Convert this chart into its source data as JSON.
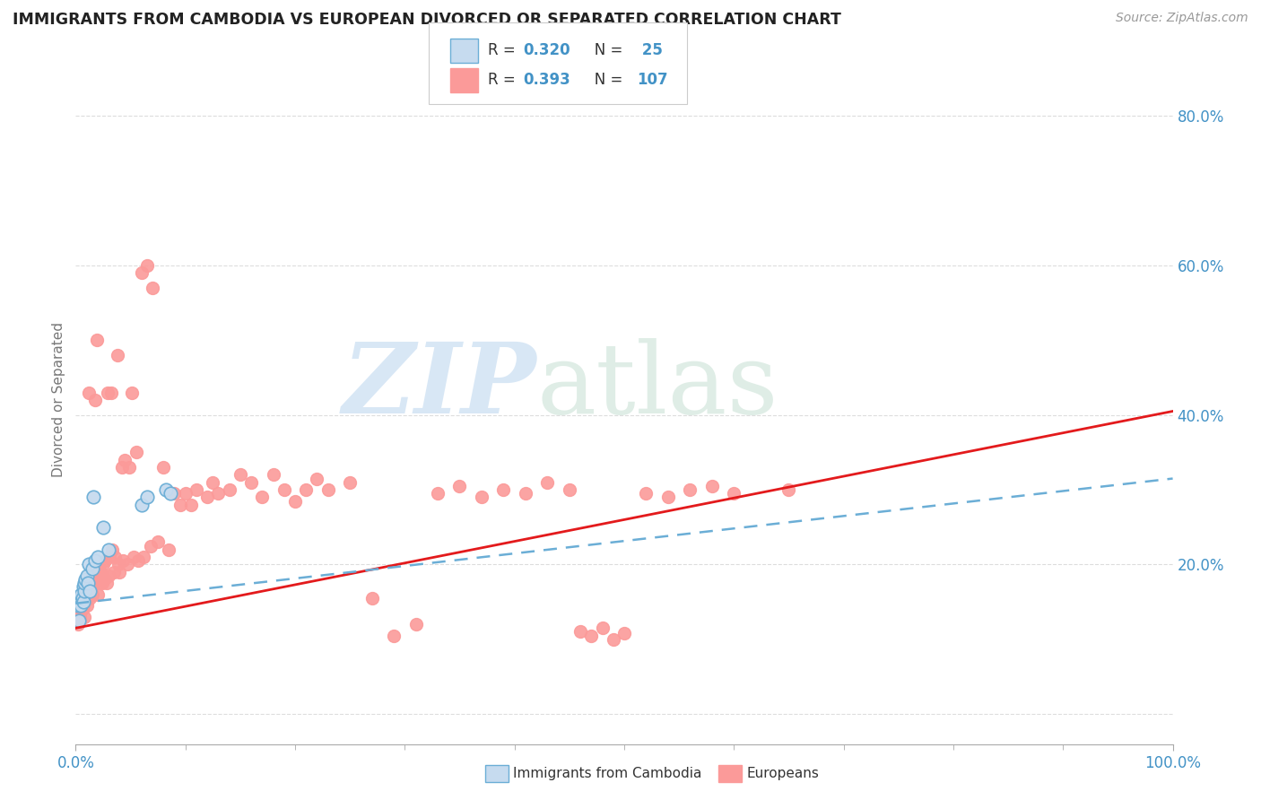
{
  "title": "IMMIGRANTS FROM CAMBODIA VS EUROPEAN DIVORCED OR SEPARATED CORRELATION CHART",
  "source": "Source: ZipAtlas.com",
  "ylabel": "Divorced or Separated",
  "r_cambodia": 0.32,
  "n_cambodia": 25,
  "r_european": 0.393,
  "n_european": 107,
  "color_cambodia_edge": "#6baed6",
  "color_cambodia_fill": "#c6dbef",
  "color_european": "#fb9a99",
  "color_trendline_cambodia": "#6baed6",
  "color_trendline_european": "#e31a1c",
  "color_axis": "#aaaaaa",
  "color_grid": "#dddddd",
  "color_title": "#222222",
  "color_blue_text": "#4292c6",
  "xlim": [
    0.0,
    1.0
  ],
  "ylim": [
    -0.04,
    0.88
  ],
  "trendline_eur_y0": 0.115,
  "trendline_eur_y1": 0.405,
  "trendline_cam_y0": 0.148,
  "trendline_cam_y1": 0.315,
  "cam_x": [
    0.002,
    0.003,
    0.004,
    0.005,
    0.005,
    0.006,
    0.007,
    0.007,
    0.008,
    0.008,
    0.009,
    0.01,
    0.011,
    0.012,
    0.013,
    0.015,
    0.016,
    0.018,
    0.02,
    0.025,
    0.03,
    0.06,
    0.065,
    0.082,
    0.086
  ],
  "cam_y": [
    0.145,
    0.125,
    0.155,
    0.16,
    0.145,
    0.155,
    0.17,
    0.15,
    0.165,
    0.175,
    0.18,
    0.185,
    0.175,
    0.2,
    0.165,
    0.195,
    0.29,
    0.205,
    0.21,
    0.25,
    0.22,
    0.28,
    0.29,
    0.3,
    0.295
  ],
  "eur_x": [
    0.001,
    0.002,
    0.003,
    0.003,
    0.004,
    0.004,
    0.005,
    0.005,
    0.006,
    0.006,
    0.007,
    0.007,
    0.008,
    0.008,
    0.009,
    0.009,
    0.01,
    0.01,
    0.011,
    0.011,
    0.012,
    0.013,
    0.013,
    0.014,
    0.015,
    0.015,
    0.016,
    0.017,
    0.018,
    0.019,
    0.02,
    0.02,
    0.021,
    0.022,
    0.023,
    0.024,
    0.025,
    0.026,
    0.027,
    0.028,
    0.029,
    0.03,
    0.031,
    0.032,
    0.033,
    0.035,
    0.036,
    0.038,
    0.039,
    0.04,
    0.042,
    0.043,
    0.045,
    0.047,
    0.049,
    0.051,
    0.053,
    0.055,
    0.057,
    0.06,
    0.062,
    0.065,
    0.068,
    0.07,
    0.075,
    0.08,
    0.085,
    0.09,
    0.095,
    0.1,
    0.105,
    0.11,
    0.12,
    0.125,
    0.13,
    0.14,
    0.15,
    0.16,
    0.17,
    0.18,
    0.19,
    0.2,
    0.21,
    0.22,
    0.23,
    0.25,
    0.27,
    0.29,
    0.31,
    0.33,
    0.35,
    0.37,
    0.39,
    0.41,
    0.43,
    0.45,
    0.46,
    0.47,
    0.48,
    0.49,
    0.5,
    0.52,
    0.54,
    0.56,
    0.58,
    0.6,
    0.65
  ],
  "eur_y": [
    0.13,
    0.12,
    0.14,
    0.125,
    0.155,
    0.13,
    0.145,
    0.155,
    0.14,
    0.155,
    0.155,
    0.145,
    0.16,
    0.13,
    0.165,
    0.155,
    0.17,
    0.145,
    0.175,
    0.165,
    0.43,
    0.17,
    0.155,
    0.18,
    0.185,
    0.16,
    0.175,
    0.19,
    0.42,
    0.5,
    0.18,
    0.16,
    0.195,
    0.175,
    0.19,
    0.175,
    0.2,
    0.18,
    0.205,
    0.175,
    0.43,
    0.185,
    0.21,
    0.43,
    0.22,
    0.19,
    0.21,
    0.48,
    0.2,
    0.19,
    0.33,
    0.205,
    0.34,
    0.2,
    0.33,
    0.43,
    0.21,
    0.35,
    0.205,
    0.59,
    0.21,
    0.6,
    0.225,
    0.57,
    0.23,
    0.33,
    0.22,
    0.295,
    0.28,
    0.295,
    0.28,
    0.3,
    0.29,
    0.31,
    0.295,
    0.3,
    0.32,
    0.31,
    0.29,
    0.32,
    0.3,
    0.285,
    0.3,
    0.315,
    0.3,
    0.31,
    0.155,
    0.105,
    0.12,
    0.295,
    0.305,
    0.29,
    0.3,
    0.295,
    0.31,
    0.3,
    0.11,
    0.105,
    0.115,
    0.1,
    0.108,
    0.295,
    0.29,
    0.3,
    0.305,
    0.295,
    0.3
  ]
}
